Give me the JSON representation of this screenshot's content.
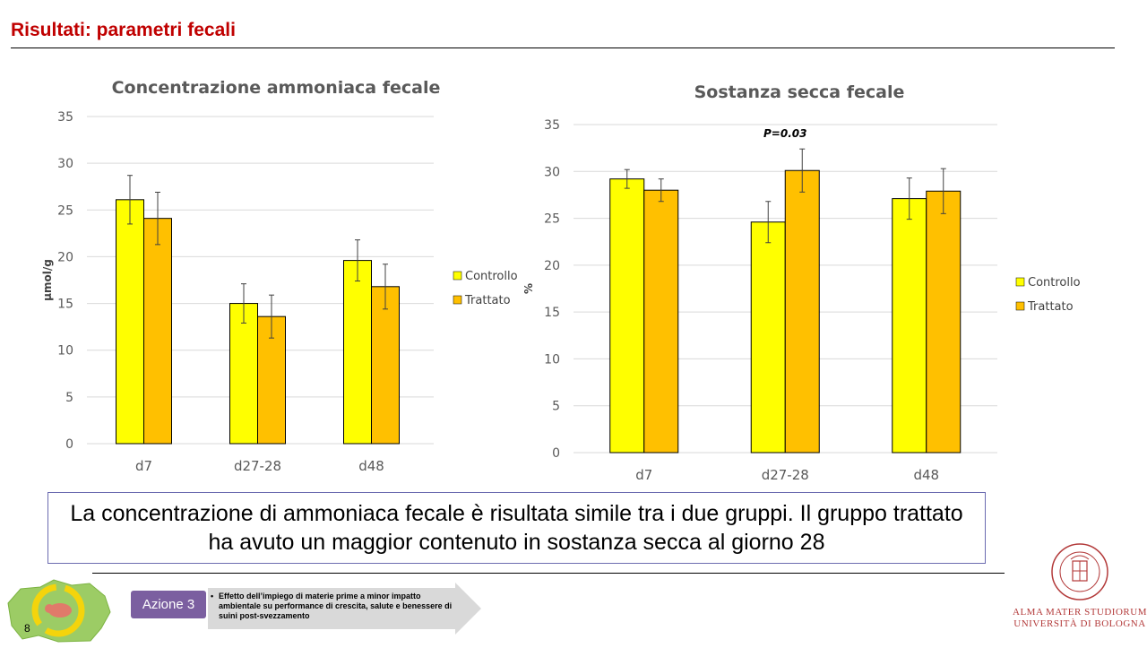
{
  "slide": {
    "title": "Risultati: parametri fecali",
    "page_number": "8"
  },
  "chart_data": [
    {
      "type": "bar",
      "title": "Concentrazione ammoniaca fecale",
      "ylabel": "µmol/g",
      "xlabel": "",
      "categories": [
        "d7",
        "d27-28",
        "d48"
      ],
      "ylim": [
        0,
        35
      ],
      "yticks": [
        0,
        5,
        10,
        15,
        20,
        25,
        30,
        35
      ],
      "grid": true,
      "legend_position": "right",
      "series": [
        {
          "name": "Controllo",
          "values": [
            26.1,
            15.0,
            19.6
          ],
          "errors": [
            2.6,
            2.1,
            2.2
          ],
          "color": "#ffff00"
        },
        {
          "name": "Trattato",
          "values": [
            24.1,
            13.6,
            16.8
          ],
          "errors": [
            2.8,
            2.3,
            2.4
          ],
          "color": "#ffc000"
        }
      ],
      "annotations": []
    },
    {
      "type": "bar",
      "title": "Sostanza secca fecale",
      "ylabel": "%",
      "xlabel": "",
      "categories": [
        "d7",
        "d27-28",
        "d48"
      ],
      "ylim": [
        0,
        35
      ],
      "yticks": [
        0,
        5,
        10,
        15,
        20,
        25,
        30,
        35
      ],
      "grid": true,
      "legend_position": "right",
      "series": [
        {
          "name": "Controllo",
          "values": [
            29.2,
            24.6,
            27.1
          ],
          "errors": [
            1.0,
            2.2,
            2.2
          ],
          "color": "#ffff00"
        },
        {
          "name": "Trattato",
          "values": [
            28.0,
            30.1,
            27.9
          ],
          "errors": [
            1.2,
            2.3,
            2.4
          ],
          "color": "#ffc000"
        }
      ],
      "annotations": [
        {
          "text": "P=0.03",
          "category_index": 1
        }
      ]
    }
  ],
  "conclusion": "La concentrazione di ammoniaca fecale è risultata simile tra i due gruppi. Il gruppo trattato ha avuto un maggior contenuto in sostanza secca al giorno 28",
  "footer": {
    "action_label": "Azione 3",
    "action_bullet": "•",
    "action_text": "Effetto dell’impiego di materie prime a minor impatto ambientale su performance di crescita, salute e benessere di suini post-svezzamento",
    "university_line1": "ALMA MATER STUDIORUM",
    "university_line2": "UNIVERSITÀ DI BOLOGNA"
  },
  "colors": {
    "title_red": "#c00000",
    "controllo": "#ffff00",
    "trattato": "#ffc000",
    "action_purple": "#7b5fa0",
    "unibo_red": "#b33a3a"
  }
}
